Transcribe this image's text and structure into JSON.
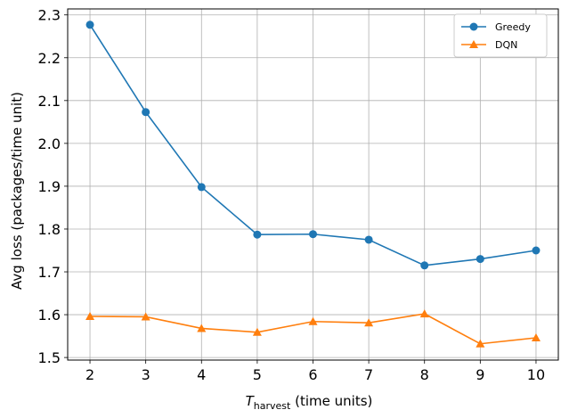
{
  "chart_data": {
    "type": "line",
    "title": "",
    "xlabel_symbol": "T",
    "xlabel_subscript": "harvest",
    "xlabel_units": " (time units)",
    "ylabel": "Avg loss (packages/time unit)",
    "x": [
      2,
      3,
      4,
      5,
      6,
      7,
      8,
      9,
      10
    ],
    "xticks": [
      "2",
      "3",
      "4",
      "5",
      "6",
      "7",
      "8",
      "9",
      "10"
    ],
    "yticks": [
      "1.5",
      "1.6",
      "1.7",
      "1.8",
      "1.9",
      "2.0",
      "2.1",
      "2.2",
      "2.3"
    ],
    "xlim": [
      1.6,
      10.4
    ],
    "ylim": [
      1.494,
      2.314
    ],
    "grid": true,
    "legend_position": "top-right",
    "series": [
      {
        "name": "Greedy",
        "color": "#1f77b4",
        "marker": "circle",
        "values": [
          2.277,
          2.073,
          1.898,
          1.787,
          1.788,
          1.775,
          1.715,
          1.73,
          1.75
        ]
      },
      {
        "name": "DQN",
        "color": "#ff7f0e",
        "marker": "triangle",
        "values": [
          1.596,
          1.595,
          1.568,
          1.559,
          1.584,
          1.581,
          1.602,
          1.532,
          1.546
        ]
      }
    ]
  }
}
